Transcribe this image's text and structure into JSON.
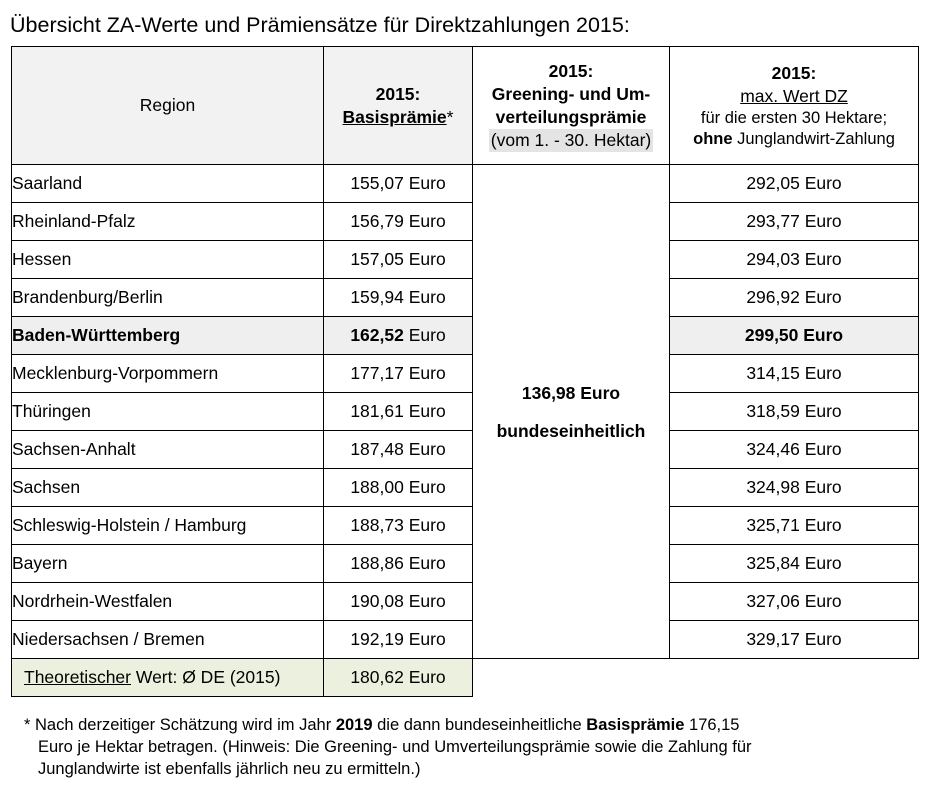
{
  "title": "Übersicht ZA-Werte und Prämiensätze für Direktzahlungen 2015:",
  "header": {
    "region": "Region",
    "basis_year": "2015:",
    "basis_label": "Basisprämie",
    "basis_suffix": "*",
    "greening_year": "2015:",
    "greening_line1": "Greening- und Um-",
    "greening_line2": "verteilungsprämie",
    "greening_line3": "(vom 1. - 30. Hektar)",
    "max_year": "2015:",
    "max_label": "max. Wert DZ",
    "max_line1": "für die ersten 30 Hektare;",
    "max_line2_bold": "ohne",
    "max_line2_rest": " Junglandwirt-Zahlung"
  },
  "greening": {
    "value": "136,98 Euro",
    "note": "bundeseinheitlich"
  },
  "rows": [
    {
      "region": "Saarland",
      "basis": "155,07",
      "max": "292,05 Euro"
    },
    {
      "region": "Rheinland-Pfalz",
      "basis": "156,79",
      "max": "293,77 Euro"
    },
    {
      "region": "Hessen",
      "basis": "157,05",
      "max": "294,03 Euro"
    },
    {
      "region": "Brandenburg/Berlin",
      "basis": "159,94",
      "max": "296,92 Euro"
    },
    {
      "region": "Baden-Württemberg",
      "basis": "162,52",
      "max": "299,50 Euro"
    },
    {
      "region": "Mecklenburg-Vorpommern",
      "basis": "177,17",
      "max": "314,15 Euro"
    },
    {
      "region": "Thüringen",
      "basis": "181,61",
      "max": "318,59 Euro"
    },
    {
      "region": "Sachsen-Anhalt",
      "basis": "187,48",
      "max": "324,46 Euro"
    },
    {
      "region": "Sachsen",
      "basis": "188,00",
      "max": "324,98 Euro"
    },
    {
      "region": "Schleswig-Holstein / Hamburg",
      "basis": "188,73",
      "max": "325,71 Euro"
    },
    {
      "region": "Bayern",
      "basis": "188,86",
      "max": "325,84 Euro"
    },
    {
      "region": "Nordrhein-Westfalen",
      "basis": "190,08",
      "max": "327,06 Euro"
    },
    {
      "region": "Niedersachsen / Bremen",
      "basis": "192,19",
      "max": "329,17 Euro"
    }
  ],
  "unit": "Euro",
  "average": {
    "label_u": "Theoretischer",
    "label_rest": " Wert: Ø DE (2015)",
    "value": "180,62 Euro"
  },
  "footnote": {
    "p1": "* Nach derzeitiger Schätzung wird im Jahr ",
    "year": "2019",
    "p2": " die dann bundeseinheitliche ",
    "term": "Basisprämie",
    "p3": " 176,15",
    "line2": "Euro je Hektar betragen. (Hinweis: Die Greening- und Umverteilungsprämie sowie die Zahlung für",
    "line3": "Junglandwirte ist ebenfalls jährlich neu zu ermitteln.)"
  }
}
